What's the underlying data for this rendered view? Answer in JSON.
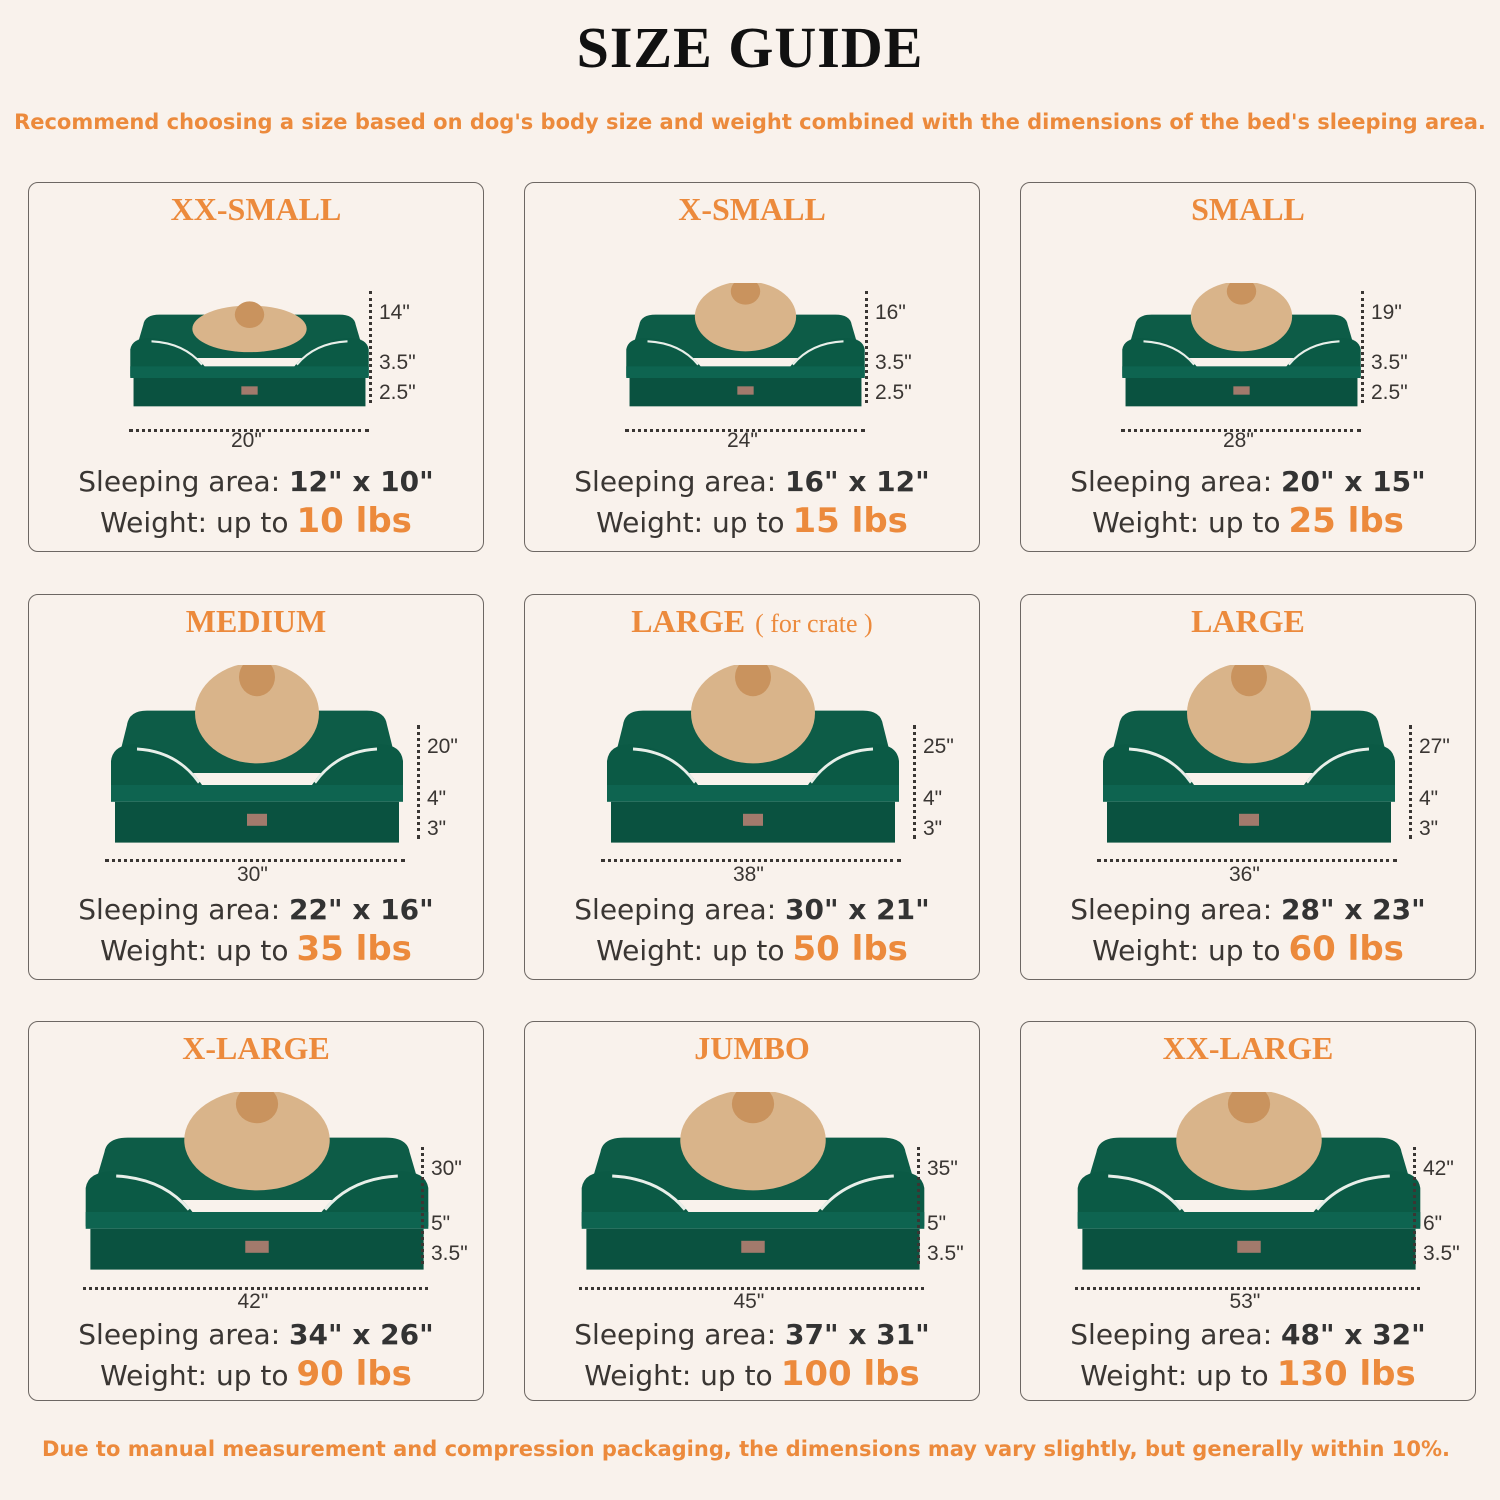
{
  "header": {
    "title": "SIZE GUIDE",
    "subtitle": "Recommend choosing a size based on dog's body size and weight combined with the dimensions of the bed's sleeping area."
  },
  "colors": {
    "accent": "#ec8a3c",
    "bed_green": "#0b5a45",
    "background": "#f9f2ec"
  },
  "sizes": [
    {
      "name": "XX-SMALL",
      "suffix": "",
      "pet": "cat",
      "depth": "14\"",
      "h1": "3.5\"",
      "h2": "2.5\"",
      "width": "20\"",
      "sleep_label": "Sleeping area:",
      "sleep": "12\" x 10\"",
      "weight_label": "Weight:  up to",
      "weight": "10 lbs"
    },
    {
      "name": "X-SMALL",
      "suffix": "",
      "pet": "dog",
      "depth": "16\"",
      "h1": "3.5\"",
      "h2": "2.5\"",
      "width": "24\"",
      "sleep_label": "Sleeping area:",
      "sleep": "16\" x 12\"",
      "weight_label": "Weight: up to",
      "weight": "15 lbs"
    },
    {
      "name": "SMALL",
      "suffix": "",
      "pet": "dog",
      "depth": "19\"",
      "h1": "3.5\"",
      "h2": "2.5\"",
      "width": "28\"",
      "sleep_label": "Sleeping area:",
      "sleep": "20\" x 15\"",
      "weight_label": "Weight: up to",
      "weight": "25 lbs"
    },
    {
      "name": "MEDIUM",
      "suffix": "",
      "pet": "dog",
      "depth": "20\"",
      "h1": "4\"",
      "h2": "3\"",
      "width": "30\"",
      "sleep_label": "Sleeping area:",
      "sleep": "22\" x 16\"",
      "weight_label": "Weight: up to",
      "weight": "35 lbs"
    },
    {
      "name": "LARGE",
      "suffix": "( for crate )",
      "pet": "dog",
      "depth": "25\"",
      "h1": "4\"",
      "h2": "3\"",
      "width": "38\"",
      "sleep_label": "Sleeping area:",
      "sleep": "30\" x 21\"",
      "weight_label": "Weight: up to",
      "weight": "50 lbs"
    },
    {
      "name": "LARGE",
      "suffix": "",
      "pet": "dog",
      "depth": "27\"",
      "h1": "4\"",
      "h2": "3\"",
      "width": "36\"",
      "sleep_label": "Sleeping area:",
      "sleep": "28\" x 23\"",
      "weight_label": "Weight: up to",
      "weight": "60 lbs"
    },
    {
      "name": "X-LARGE",
      "suffix": "",
      "pet": "dog",
      "depth": "30\"",
      "h1": "5\"",
      "h2": "3.5\"",
      "width": "42\"",
      "sleep_label": "Sleeping area:",
      "sleep": "34\" x 26\"",
      "weight_label": "Weight: up to",
      "weight": "90 lbs"
    },
    {
      "name": "JUMBO",
      "suffix": "",
      "pet": "dog",
      "depth": "35\"",
      "h1": "5\"",
      "h2": "3.5\"",
      "width": "45\"",
      "sleep_label": "Sleeping area:",
      "sleep": "37\" x 31\"",
      "weight_label": "Weight: up to",
      "weight": "100 lbs"
    },
    {
      "name": "XX-LARGE",
      "suffix": "",
      "pet": "dog",
      "depth": "42\"",
      "h1": "6\"",
      "h2": "3.5\"",
      "width": "53\"",
      "sleep_label": "Sleeping area:",
      "sleep": "48\" x 32\"",
      "weight_label": "Weight: up to",
      "weight": "130 lbs"
    }
  ],
  "footer": {
    "note": "Due to manual measurement and compression packaging, the dimensions may vary slightly, but generally within 10%."
  }
}
